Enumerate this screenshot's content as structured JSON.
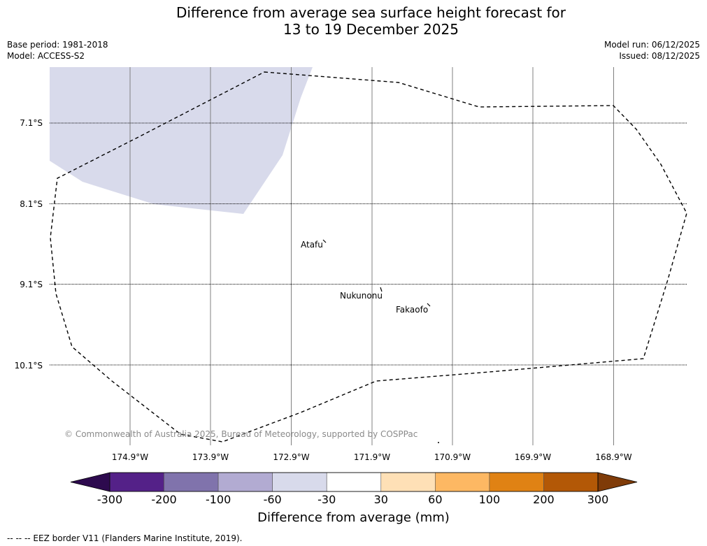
{
  "title_line1": "Difference from average sea surface height forecast for",
  "title_line2": "13 to 19 December 2025",
  "base_period": "Base period: 1981-2018",
  "model": "Model: ACCESS-S2",
  "model_run": "Model run: 06/12/2025",
  "issued": "Issued: 08/12/2025",
  "lat_labels": [
    "7.1°S",
    "8.1°S",
    "9.1°S",
    "10.1°S"
  ],
  "lon_labels": [
    "174.9°W",
    "173.9°W",
    "172.9°W",
    "171.9°W",
    "170.9°W",
    "169.9°W",
    "168.9°W"
  ],
  "islands": {
    "atafu": "Atafu",
    "nukunonu": "Nukunonu",
    "fakaofo": "Fakaofo"
  },
  "copyright": "© Commonwealth of Australia 2025, Bureau of Meteorology, supported by COSPPac",
  "colorbar": {
    "ticks": [
      "-300",
      "-200",
      "-100",
      "-60",
      "-30",
      "30",
      "60",
      "100",
      "200",
      "300"
    ],
    "colors": [
      "#2d0a4e",
      "#542188",
      "#8073ac",
      "#b2abd2",
      "#d8daeb",
      "#ffffff",
      "#fee0b6",
      "#fdb863",
      "#e08214",
      "#b35806",
      "#7f3b08"
    ],
    "title": "Difference from average (mm)"
  },
  "footnote": "--  --  -- EEZ border V11 (Flanders Marine Institute, 2019).",
  "chart_data": {
    "type": "heatmap",
    "title": "Difference from average sea surface height forecast for 13 to 19 December 2025",
    "units": "mm",
    "lat_ticks": [
      "7.1°S",
      "8.1°S",
      "9.1°S",
      "10.1°S"
    ],
    "lon_ticks": [
      "174.9°W",
      "173.9°W",
      "172.9°W",
      "171.9°W",
      "170.9°W",
      "169.9°W",
      "168.9°W"
    ],
    "levels": [
      -300,
      -200,
      -100,
      -60,
      -30,
      30,
      60,
      100,
      200,
      300
    ],
    "regions": [
      {
        "category": "-60 to -30",
        "location": "north-west of map"
      },
      {
        "category": "-30 to 30",
        "location": "remainder of map"
      }
    ]
  }
}
